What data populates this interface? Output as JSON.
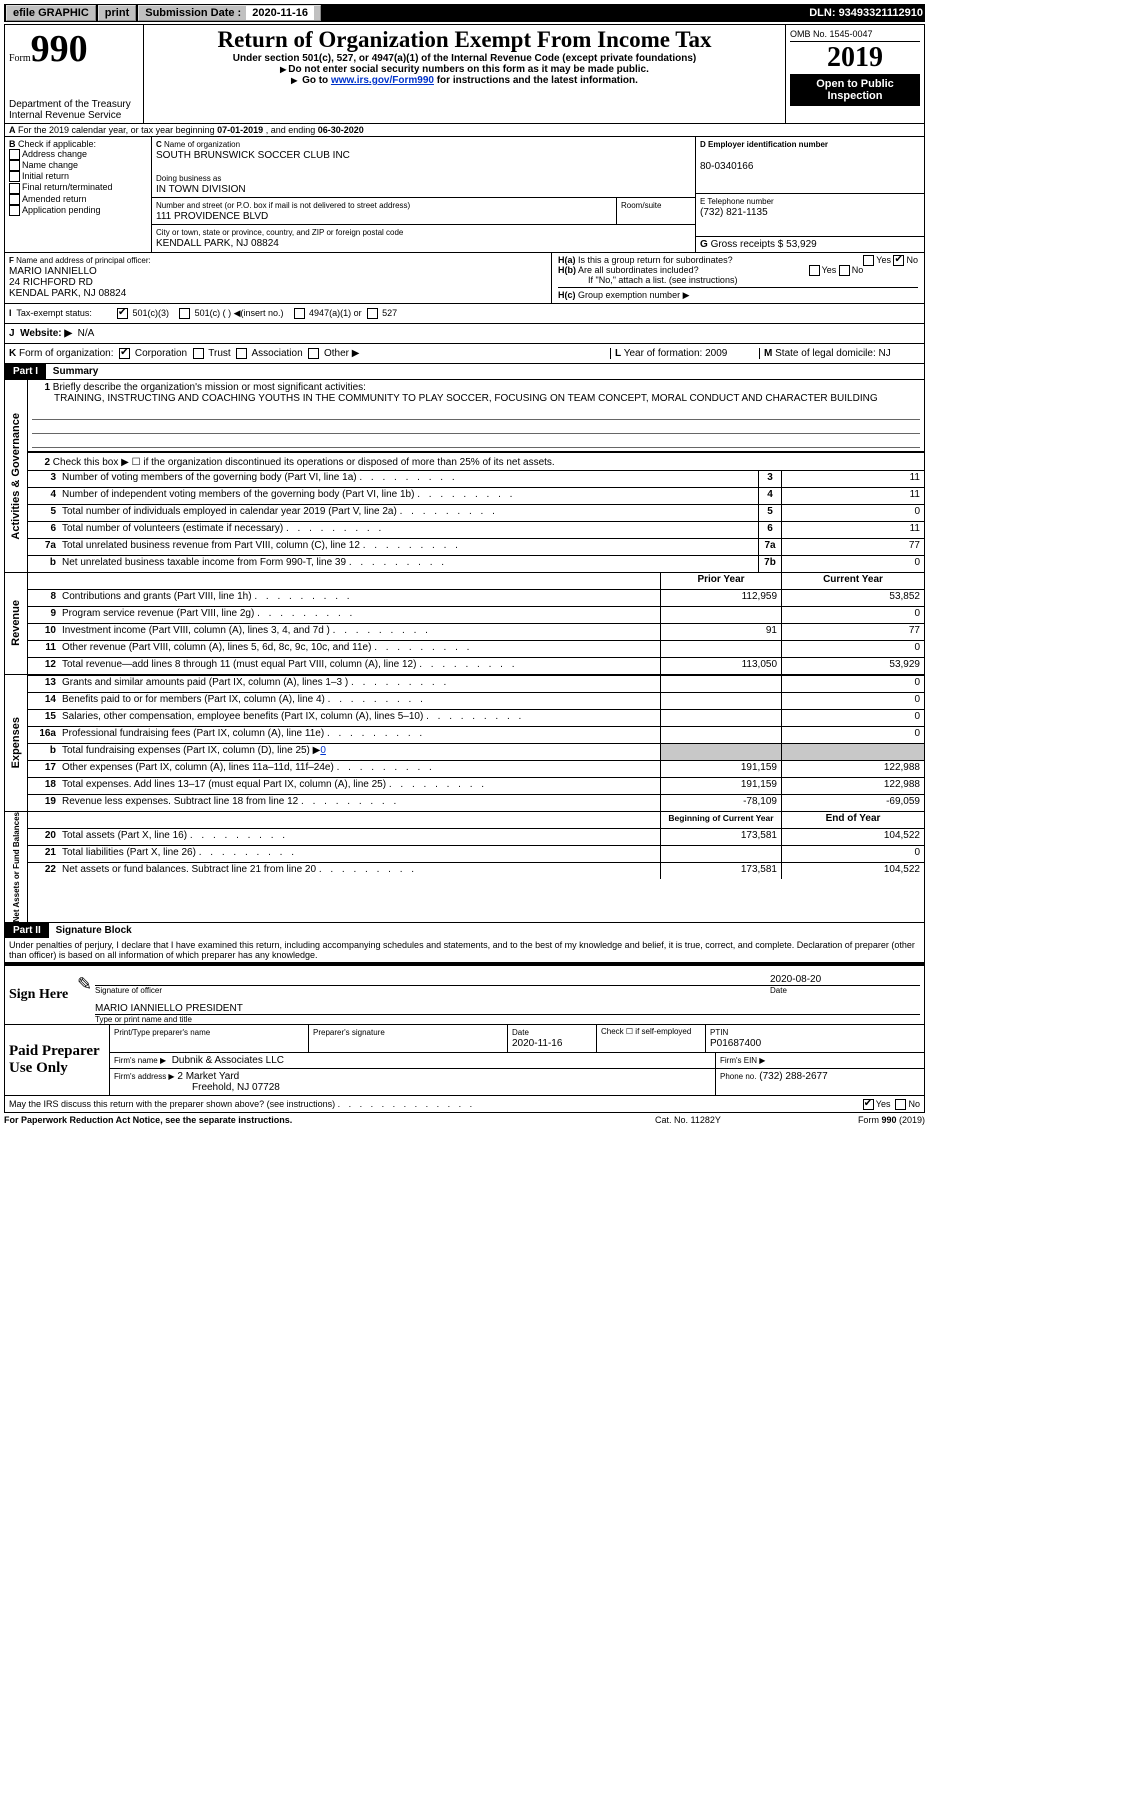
{
  "colors": {
    "black": "#000000",
    "white": "#ffffff",
    "link": "#0033cc",
    "grey": "#c8c8c8"
  },
  "topbar": {
    "efile_label": "efile GRAPHIC",
    "print_btn": "print",
    "sub_date_label": "Submission Date :",
    "sub_date": "2020-11-16",
    "dln_label": "DLN:",
    "dln": "93493321112910"
  },
  "header": {
    "form_word": "Form",
    "form_num": "990",
    "dept": "Department of the Treasury",
    "irs": "Internal Revenue Service",
    "title": "Return of Organization Exempt From Income Tax",
    "sub1": "Under section 501(c), 527, or 4947(a)(1) of the Internal Revenue Code (except private foundations)",
    "sub2": "Do not enter social security numbers on this form as it may be made public.",
    "sub3_pre": "Go to ",
    "sub3_link": "www.irs.gov/Form990",
    "sub3_post": " for instructions and the latest information.",
    "omb": "OMB No. 1545-0047",
    "year": "2019",
    "open": "Open to Public Inspection"
  },
  "rowA": {
    "prefix": "A",
    "text": "For the 2019 calendar year, or tax year beginning ",
    "begin": "07-01-2019",
    "mid": ", and ending ",
    "end": "06-30-2020"
  },
  "boxB": {
    "label": "B",
    "note": "Check if applicable:",
    "opts": [
      "Address change",
      "Name change",
      "Initial return",
      "Final return/terminated",
      "Amended return",
      "Application pending"
    ]
  },
  "boxC": {
    "label": "C",
    "name_label": "Name of organization",
    "name": "SOUTH BRUNSWICK SOCCER CLUB INC",
    "dba_label": "Doing business as",
    "dba": "IN TOWN DIVISION",
    "street_label": "Number and street (or P.O. box if mail is not delivered to street address)",
    "room_label": "Room/suite",
    "street": "111 PROVIDENCE BLVD",
    "city_label": "City or town, state or province, country, and ZIP or foreign postal code",
    "city": "KENDALL PARK, NJ  08824"
  },
  "colRight": {
    "d_label": "D Employer identification number",
    "d_val": "80-0340166",
    "e_label": "E Telephone number",
    "e_val": "(732) 821-1135",
    "g_label": "G",
    "g_text": "Gross receipts $",
    "g_val": "53,929"
  },
  "boxF": {
    "label": "F",
    "title": "Name and address of principal officer:",
    "name": "MARIO IANNIELLO",
    "addr1": "24 RICHFORD RD",
    "addr2": "KENDAL PARK, NJ  08824"
  },
  "boxH": {
    "ha_label": "H(a)",
    "ha_text": "Is this a group return for subordinates?",
    "hb_label": "H(b)",
    "hb_text": "Are all subordinates included?",
    "h_note": "If \"No,\" attach a list. (see instructions)",
    "hc_label": "H(c)",
    "hc_text": "Group exemption number ▶",
    "yes": "Yes",
    "no": "No"
  },
  "taxstatus": {
    "i_label": "I",
    "label": "Tax-exempt status:",
    "opt1": "501(c)(3)",
    "opt2": "501(c) (   )",
    "opt2_note": "(insert no.)",
    "opt3": "4947(a)(1) or",
    "opt4": "527"
  },
  "website": {
    "j_label": "J",
    "label": "Website: ▶",
    "val": "N/A"
  },
  "kform": {
    "k_label": "K",
    "label": "Form of organization:",
    "opts": [
      "Corporation",
      "Trust",
      "Association",
      "Other ▶"
    ],
    "l_label": "L",
    "l_text": "Year of formation:",
    "l_val": "2009",
    "m_label": "M",
    "m_text": "State of legal domicile:",
    "m_val": "NJ"
  },
  "partI": {
    "part": "Part I",
    "title": "Summary",
    "q1_num": "1",
    "q1": "Briefly describe the organization's mission or most significant activities:",
    "q1_ans": "TRAINING, INSTRUCTING AND COACHING YOUTHS IN THE COMMUNITY TO PLAY SOCCER, FOCUSING ON TEAM CONCEPT, MORAL CONDUCT AND CHARACTER BUILDING",
    "q2_num": "2",
    "q2": "Check this box ▶ ☐  if the organization discontinued its operations or disposed of more than 25% of its net assets.",
    "rows_ag": [
      {
        "n": "3",
        "d": "Number of voting members of the governing body (Part VI, line 1a)",
        "box": "3",
        "v": "11"
      },
      {
        "n": "4",
        "d": "Number of independent voting members of the governing body (Part VI, line 1b)",
        "box": "4",
        "v": "11"
      },
      {
        "n": "5",
        "d": "Total number of individuals employed in calendar year 2019 (Part V, line 2a)",
        "box": "5",
        "v": "0"
      },
      {
        "n": "6",
        "d": "Total number of volunteers (estimate if necessary)",
        "box": "6",
        "v": "11"
      },
      {
        "n": "7a",
        "d": "Total unrelated business revenue from Part VIII, column (C), line 12",
        "box": "7a",
        "v": "77"
      },
      {
        "n": "b",
        "d": "Net unrelated business taxable income from Form 990-T, line 39",
        "box": "7b",
        "v": "0"
      }
    ],
    "col_prior": "Prior Year",
    "col_curr": "Current Year",
    "rows_rev": [
      {
        "n": "8",
        "d": "Contributions and grants (Part VIII, line 1h)",
        "p": "112,959",
        "c": "53,852"
      },
      {
        "n": "9",
        "d": "Program service revenue (Part VIII, line 2g)",
        "p": "",
        "c": "0"
      },
      {
        "n": "10",
        "d": "Investment income (Part VIII, column (A), lines 3, 4, and 7d )",
        "p": "91",
        "c": "77"
      },
      {
        "n": "11",
        "d": "Other revenue (Part VIII, column (A), lines 5, 6d, 8c, 9c, 10c, and 11e)",
        "p": "",
        "c": "0"
      },
      {
        "n": "12",
        "d": "Total revenue—add lines 8 through 11 (must equal Part VIII, column (A), line 12)",
        "p": "113,050",
        "c": "53,929"
      }
    ],
    "rows_exp": [
      {
        "n": "13",
        "d": "Grants and similar amounts paid (Part IX, column (A), lines 1–3 )",
        "p": "",
        "c": "0"
      },
      {
        "n": "14",
        "d": "Benefits paid to or for members (Part IX, column (A), line 4)",
        "p": "",
        "c": "0"
      },
      {
        "n": "15",
        "d": "Salaries, other compensation, employee benefits (Part IX, column (A), lines 5–10)",
        "p": "",
        "c": "0"
      },
      {
        "n": "16a",
        "d": "Professional fundraising fees (Part IX, column (A), line 11e)",
        "p": "",
        "c": "0"
      }
    ],
    "row_b": {
      "n": "b",
      "d": "Total fundraising expenses (Part IX, column (D), line 25) ▶",
      "v": "0"
    },
    "rows_exp2": [
      {
        "n": "17",
        "d": "Other expenses (Part IX, column (A), lines 11a–11d, 11f–24e)",
        "p": "191,159",
        "c": "122,988"
      },
      {
        "n": "18",
        "d": "Total expenses. Add lines 13–17 (must equal Part IX, column (A), line 25)",
        "p": "191,159",
        "c": "122,988"
      },
      {
        "n": "19",
        "d": "Revenue less expenses. Subtract line 18 from line 12",
        "p": "-78,109",
        "c": "-69,059"
      }
    ],
    "col_begin": "Beginning of Current Year",
    "col_end": "End of Year",
    "rows_na": [
      {
        "n": "20",
        "d": "Total assets (Part X, line 16)",
        "p": "173,581",
        "c": "104,522"
      },
      {
        "n": "21",
        "d": "Total liabilities (Part X, line 26)",
        "p": "",
        "c": "0"
      },
      {
        "n": "22",
        "d": "Net assets or fund balances. Subtract line 21 from line 20",
        "p": "173,581",
        "c": "104,522"
      }
    ],
    "vlabels": {
      "ag": "Activities & Governance",
      "rev": "Revenue",
      "exp": "Expenses",
      "na": "Net Assets or Fund Balances"
    }
  },
  "partII": {
    "part": "Part II",
    "title": "Signature Block",
    "decl": "Under penalties of perjury, I declare that I have examined this return, including accompanying schedules and statements, and to the best of my knowledge and belief, it is true, correct, and complete. Declaration of preparer (other than officer) is based on all information of which preparer has any knowledge."
  },
  "sign": {
    "label": "Sign Here",
    "sig_officer": "Signature of officer",
    "date_label": "Date",
    "date": "2020-08-20",
    "name_title": "MARIO IANNIELLO  PRESIDENT",
    "type_label": "Type or print name and title"
  },
  "prep": {
    "label": "Paid Preparer Use Only",
    "print_name": "Print/Type preparer's name",
    "prep_sig": "Preparer's signature",
    "date_label": "Date",
    "date": "2020-11-16",
    "check_label": "Check ☐ if self-employed",
    "ptin_label": "PTIN",
    "ptin": "P01687400",
    "firm_name_label": "Firm's name  ▶",
    "firm_name": "Dubnik & Associates LLC",
    "firm_ein_label": "Firm's EIN ▶",
    "firm_addr_label": "Firm's address ▶",
    "firm_addr1": "2 Market Yard",
    "firm_addr2": "Freehold, NJ  07728",
    "phone_label": "Phone no.",
    "phone": "(732) 288-2677"
  },
  "discuss": {
    "q": "May the IRS discuss this return with the preparer shown above? (see instructions)",
    "yes": "Yes",
    "no": "No"
  },
  "footer": {
    "pra": "For Paperwork Reduction Act Notice, see the separate instructions.",
    "cat": "Cat. No. 11282Y",
    "form": "Form 990 (2019)"
  }
}
